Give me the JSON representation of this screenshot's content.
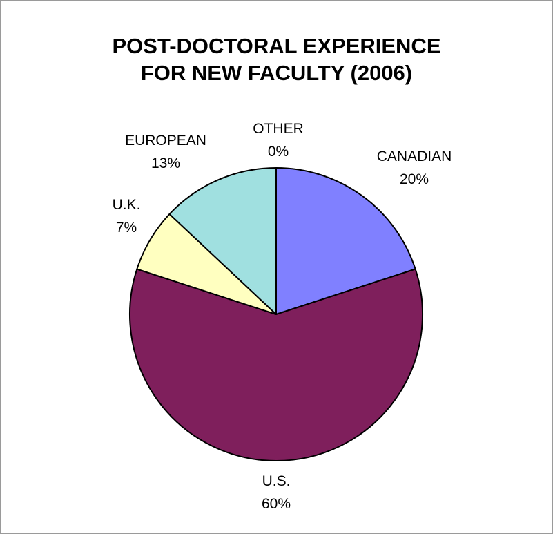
{
  "chart_data": {
    "type": "pie",
    "title": [
      "POST-DOCTORAL EXPERIENCE",
      "FOR NEW FACULTY (2006)"
    ],
    "slices": [
      {
        "label": "CANADIAN",
        "value_label": "20%",
        "value": 20,
        "color": "#8080FF"
      },
      {
        "label": "U.S.",
        "value_label": "60%",
        "value": 60,
        "color": "#7F1F5C"
      },
      {
        "label": "U.K.",
        "value_label": "7%",
        "value": 7,
        "color": "#FFFFC0"
      },
      {
        "label": "EUROPEAN",
        "value_label": "13%",
        "value": 13,
        "color": "#A0E0E0"
      },
      {
        "label": "OTHER",
        "value_label": "0%",
        "value": 0,
        "color": "#808080"
      }
    ]
  }
}
